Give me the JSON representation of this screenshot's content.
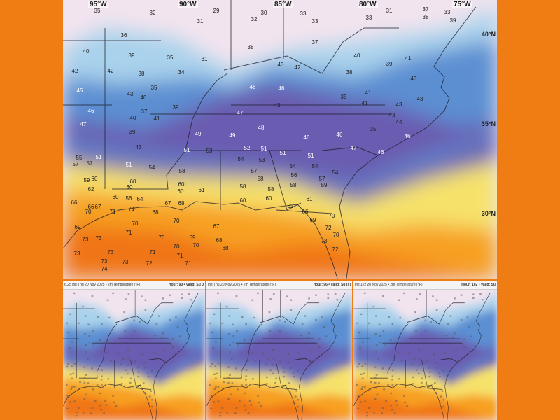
{
  "main_map": {
    "field": "2m Temperature (°F)",
    "lat_labels": [
      "40°N",
      "35°N",
      "30°N"
    ],
    "lon_labels": [
      "95°W",
      "90°W",
      "85°W",
      "80°W",
      "75°W"
    ],
    "station_temps": [
      35,
      32,
      29,
      30,
      33,
      31,
      37,
      33,
      36,
      31,
      32,
      33,
      33,
      38,
      39,
      40,
      39,
      35,
      31,
      38,
      37,
      40,
      41,
      42,
      42,
      38,
      34,
      43,
      42,
      38,
      39,
      43,
      45,
      35,
      43,
      40,
      46,
      46,
      41,
      35,
      43,
      46,
      37,
      39,
      47,
      43,
      41,
      43,
      43,
      44,
      47,
      40,
      41,
      49,
      49,
      48,
      46,
      46,
      35,
      46,
      39,
      55,
      51,
      43,
      51,
      53,
      52,
      51,
      51,
      51,
      47,
      46,
      57,
      57,
      51,
      54,
      58,
      54,
      53,
      54,
      54,
      54,
      59,
      60,
      60,
      60,
      57,
      58,
      56,
      57,
      62,
      60,
      60,
      61,
      58,
      58,
      58,
      59,
      60,
      56,
      64,
      60,
      60,
      61,
      66,
      66,
      67,
      67,
      68,
      71,
      71,
      68,
      62,
      66,
      70,
      70,
      69,
      70,
      70,
      67,
      69,
      71,
      70,
      69,
      68,
      72,
      70,
      73,
      73,
      70,
      70,
      68,
      73,
      72,
      73,
      73,
      71,
      71,
      73,
      73,
      72,
      71,
      74
    ]
  },
  "panels": [
    {
      "title": "6.25  Init Thu 20 Nov 2025 • 2m Temperature (°F)",
      "hour": "Hour: 90 • Valid: Su 0"
    },
    {
      "title": "Init Thu 20 Nov 2025 • 2m Temperature (°F)",
      "hour": "Hour: 96 • Valid: Su (x)"
    },
    {
      "title": "Init 12z 20 Nov 2025 • 2m Temperature (°F)",
      "hour": "Hour: 102 • Valid: Su"
    }
  ],
  "colors": {
    "background": "#f07d14",
    "cold_pink": "#f1e4ee",
    "light_blue": "#a9d2ec",
    "blue": "#5b8fd2",
    "purple": "#6a5cb0",
    "yellow": "#f6e26a",
    "orange": "#f7a024",
    "deep_orange": "#f07414"
  }
}
